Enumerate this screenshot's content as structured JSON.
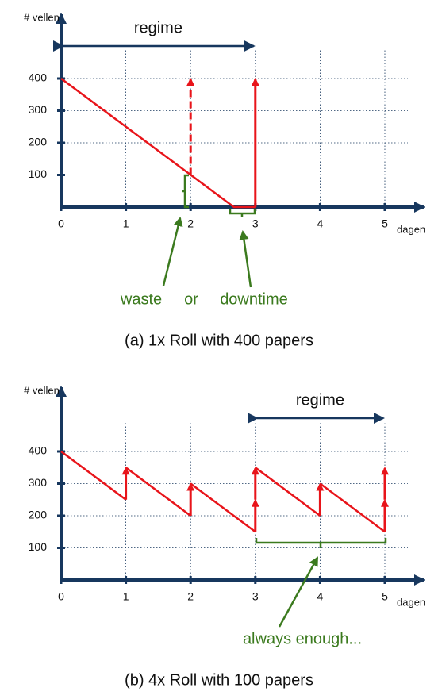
{
  "chart_data": [
    {
      "type": "line",
      "caption": "(a) 1x Roll with 400 papers",
      "y_label": "# vellen",
      "x_label": "dagen",
      "xlim": [
        0,
        5.6
      ],
      "ylim": [
        0,
        600
      ],
      "xticks": [
        0,
        1,
        2,
        3,
        4,
        5
      ],
      "yticks": [
        100,
        200,
        300,
        400
      ],
      "grid": true,
      "regime": {
        "label": "regime",
        "from": 0,
        "to": 3
      },
      "series": [
        {
          "color": "#e8141a",
          "x": [
            0,
            2.67,
            3
          ],
          "values": [
            400,
            0,
            0
          ]
        }
      ],
      "arrows": [
        {
          "x": 2,
          "y0": 100,
          "y1": 400,
          "style": "dashed"
        },
        {
          "x": 3,
          "y0": 0,
          "y1": 400,
          "style": "solid"
        }
      ],
      "annotations": [
        "waste",
        "or",
        "downtime"
      ]
    },
    {
      "type": "line",
      "caption": "(b) 4x Roll with 100 papers",
      "y_label": "# vellen",
      "x_label": "dagen",
      "xlim": [
        0,
        5.6
      ],
      "ylim": [
        0,
        600
      ],
      "xticks": [
        0,
        1,
        2,
        3,
        4,
        5
      ],
      "yticks": [
        100,
        200,
        300,
        400
      ],
      "grid": true,
      "regime": {
        "label": "regime",
        "from": 3,
        "to": 5
      },
      "series": [
        {
          "color": "#e8141a",
          "x": [
            0,
            1,
            1,
            1,
            2,
            2,
            2,
            3,
            3,
            3,
            4,
            4,
            4,
            5
          ],
          "values": [
            400,
            250,
            null,
            350,
            200,
            null,
            300,
            150,
            null,
            350,
            200,
            null,
            300,
            150
          ]
        }
      ],
      "arrows": [
        {
          "x": 1,
          "y0": 250,
          "y1": 350,
          "style": "solid"
        },
        {
          "x": 2,
          "y0": 200,
          "y1": 300,
          "style": "solid"
        },
        {
          "x": 3,
          "y0": 150,
          "y1": 250,
          "style": "solid"
        },
        {
          "x": 3,
          "y0": 250,
          "y1": 350,
          "style": "solid"
        },
        {
          "x": 4,
          "y0": 200,
          "y1": 300,
          "style": "solid"
        },
        {
          "x": 5,
          "y0": 150,
          "y1": 250,
          "style": "solid"
        },
        {
          "x": 5,
          "y0": 250,
          "y1": 350,
          "style": "solid"
        }
      ],
      "annotations": [
        "always enough..."
      ]
    }
  ]
}
